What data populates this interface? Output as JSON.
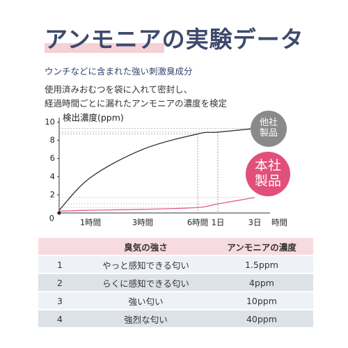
{
  "title": "アンモニアの実験データ",
  "subtitle": "ウンチなどに含まれた強い刺激臭成分",
  "description": [
    "使用済みおむつを袋に入れて密封し、",
    "経過時間ごとに漏れたアンモニアの濃度を検定"
  ],
  "chart_data": {
    "type": "line",
    "y_label": "検出濃度(ppm)",
    "x_label": "時間",
    "categories": [
      null,
      "1時間",
      "3時間",
      "6時間",
      "1日",
      "3日"
    ],
    "series": [
      {
        "name": "他社製品",
        "color": "#222222",
        "values": [
          0.3,
          3.9,
          7.0,
          8.7,
          8.9,
          9.3
        ]
      },
      {
        "name": "本社製品",
        "color": "#e0507a",
        "values": [
          0.2,
          0.3,
          0.4,
          0.6,
          1.0,
          1.7
        ]
      }
    ],
    "ylim": [
      0,
      10.5
    ],
    "yticks": [
      0,
      2,
      4,
      6,
      8,
      10
    ]
  },
  "table": {
    "header": [
      "臭気の強さ",
      "アンモニアの濃度"
    ],
    "rows": [
      [
        "1",
        "やっと感知できる匂い",
        "1.5ppm"
      ],
      [
        "2",
        "らくに感知できる匂い",
        "4ppm"
      ],
      [
        "3",
        "強い匂い",
        "10ppm"
      ],
      [
        "4",
        "強烈な匂い",
        "40ppm"
      ]
    ]
  }
}
